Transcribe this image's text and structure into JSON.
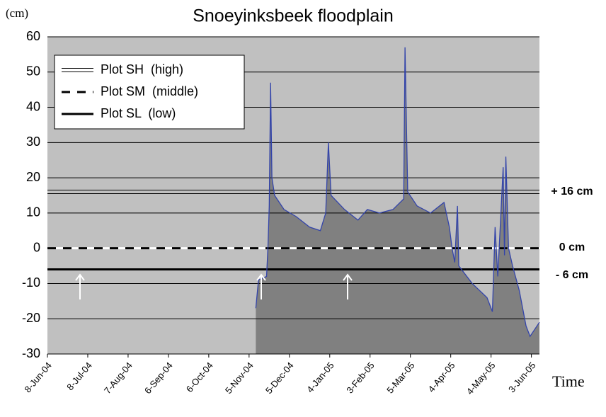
{
  "chart_data": {
    "type": "area",
    "title": "Snoeyinksbeek floodplain",
    "y_label": "(cm)",
    "x_label": "Time",
    "ylim": [
      -30,
      60
    ],
    "yticks": [
      -30,
      -20,
      -10,
      0,
      10,
      20,
      30,
      40,
      50,
      60
    ],
    "xlim": [
      "2004-06-08",
      "2005-06-09"
    ],
    "xticks": [
      {
        "value": "2004-06-08",
        "label": "8-Jun-04"
      },
      {
        "value": "2004-07-08",
        "label": "8-Jul-04"
      },
      {
        "value": "2004-08-07",
        "label": "7-Aug-04"
      },
      {
        "value": "2004-09-06",
        "label": "6-Sep-04"
      },
      {
        "value": "2004-10-06",
        "label": "6-Oct-04"
      },
      {
        "value": "2004-11-05",
        "label": "5-Nov-04"
      },
      {
        "value": "2004-12-05",
        "label": "5-Dec-04"
      },
      {
        "value": "2005-01-04",
        "label": "4-Jan-05"
      },
      {
        "value": "2005-02-03",
        "label": "3-Feb-05"
      },
      {
        "value": "2005-03-05",
        "label": "5-Mar-05"
      },
      {
        "value": "2005-04-04",
        "label": "4-Apr-05"
      },
      {
        "value": "2005-05-04",
        "label": "4-May-05"
      },
      {
        "value": "2005-06-03",
        "label": "3-Jun-05"
      }
    ],
    "grid": true,
    "series": [
      {
        "color": "#3344aa",
        "fill": "#808080",
        "x": [
          "2004-11-10",
          "2004-11-12",
          "2004-11-18",
          "2004-11-19",
          "2004-11-20",
          "2004-11-21",
          "2004-11-22",
          "2004-11-24",
          "2004-12-01",
          "2004-12-10",
          "2004-12-20",
          "2004-12-28",
          "2005-01-01",
          "2005-01-03",
          "2005-01-05",
          "2005-01-15",
          "2005-01-25",
          "2005-02-01",
          "2005-02-10",
          "2005-02-20",
          "2005-02-28",
          "2005-03-01",
          "2005-03-03",
          "2005-03-10",
          "2005-03-20",
          "2005-03-30",
          "2005-04-03",
          "2005-04-05",
          "2005-04-07",
          "2005-04-09",
          "2005-04-10",
          "2005-04-20",
          "2005-05-01",
          "2005-05-05",
          "2005-05-07",
          "2005-05-09",
          "2005-05-13",
          "2005-05-14",
          "2005-05-15",
          "2005-05-17",
          "2005-05-20",
          "2005-05-25",
          "2005-05-30",
          "2005-06-02",
          "2005-06-09"
        ],
        "values": [
          -17,
          -9,
          -8,
          0,
          12,
          47,
          20,
          15,
          11,
          9,
          6,
          5,
          10,
          30,
          15,
          11,
          8,
          11,
          10,
          11,
          14,
          57,
          16,
          12,
          10,
          13,
          6,
          0,
          -4,
          12,
          -5,
          -10,
          -14,
          -18,
          6,
          -8,
          23,
          -2,
          26,
          0,
          -5,
          -12,
          -22,
          -25,
          -21
        ]
      }
    ],
    "reference_lines": [
      {
        "name": "Plot SH  (high)",
        "value": 16,
        "label": "+ 16 cm",
        "style": "double"
      },
      {
        "name": "Plot SM  (middle)",
        "value": 0,
        "label": "0 cm",
        "style": "dashed"
      },
      {
        "name": "Plot SL  (low)",
        "value": -6,
        "label": "- 6 cm",
        "style": "solid"
      }
    ]
  }
}
